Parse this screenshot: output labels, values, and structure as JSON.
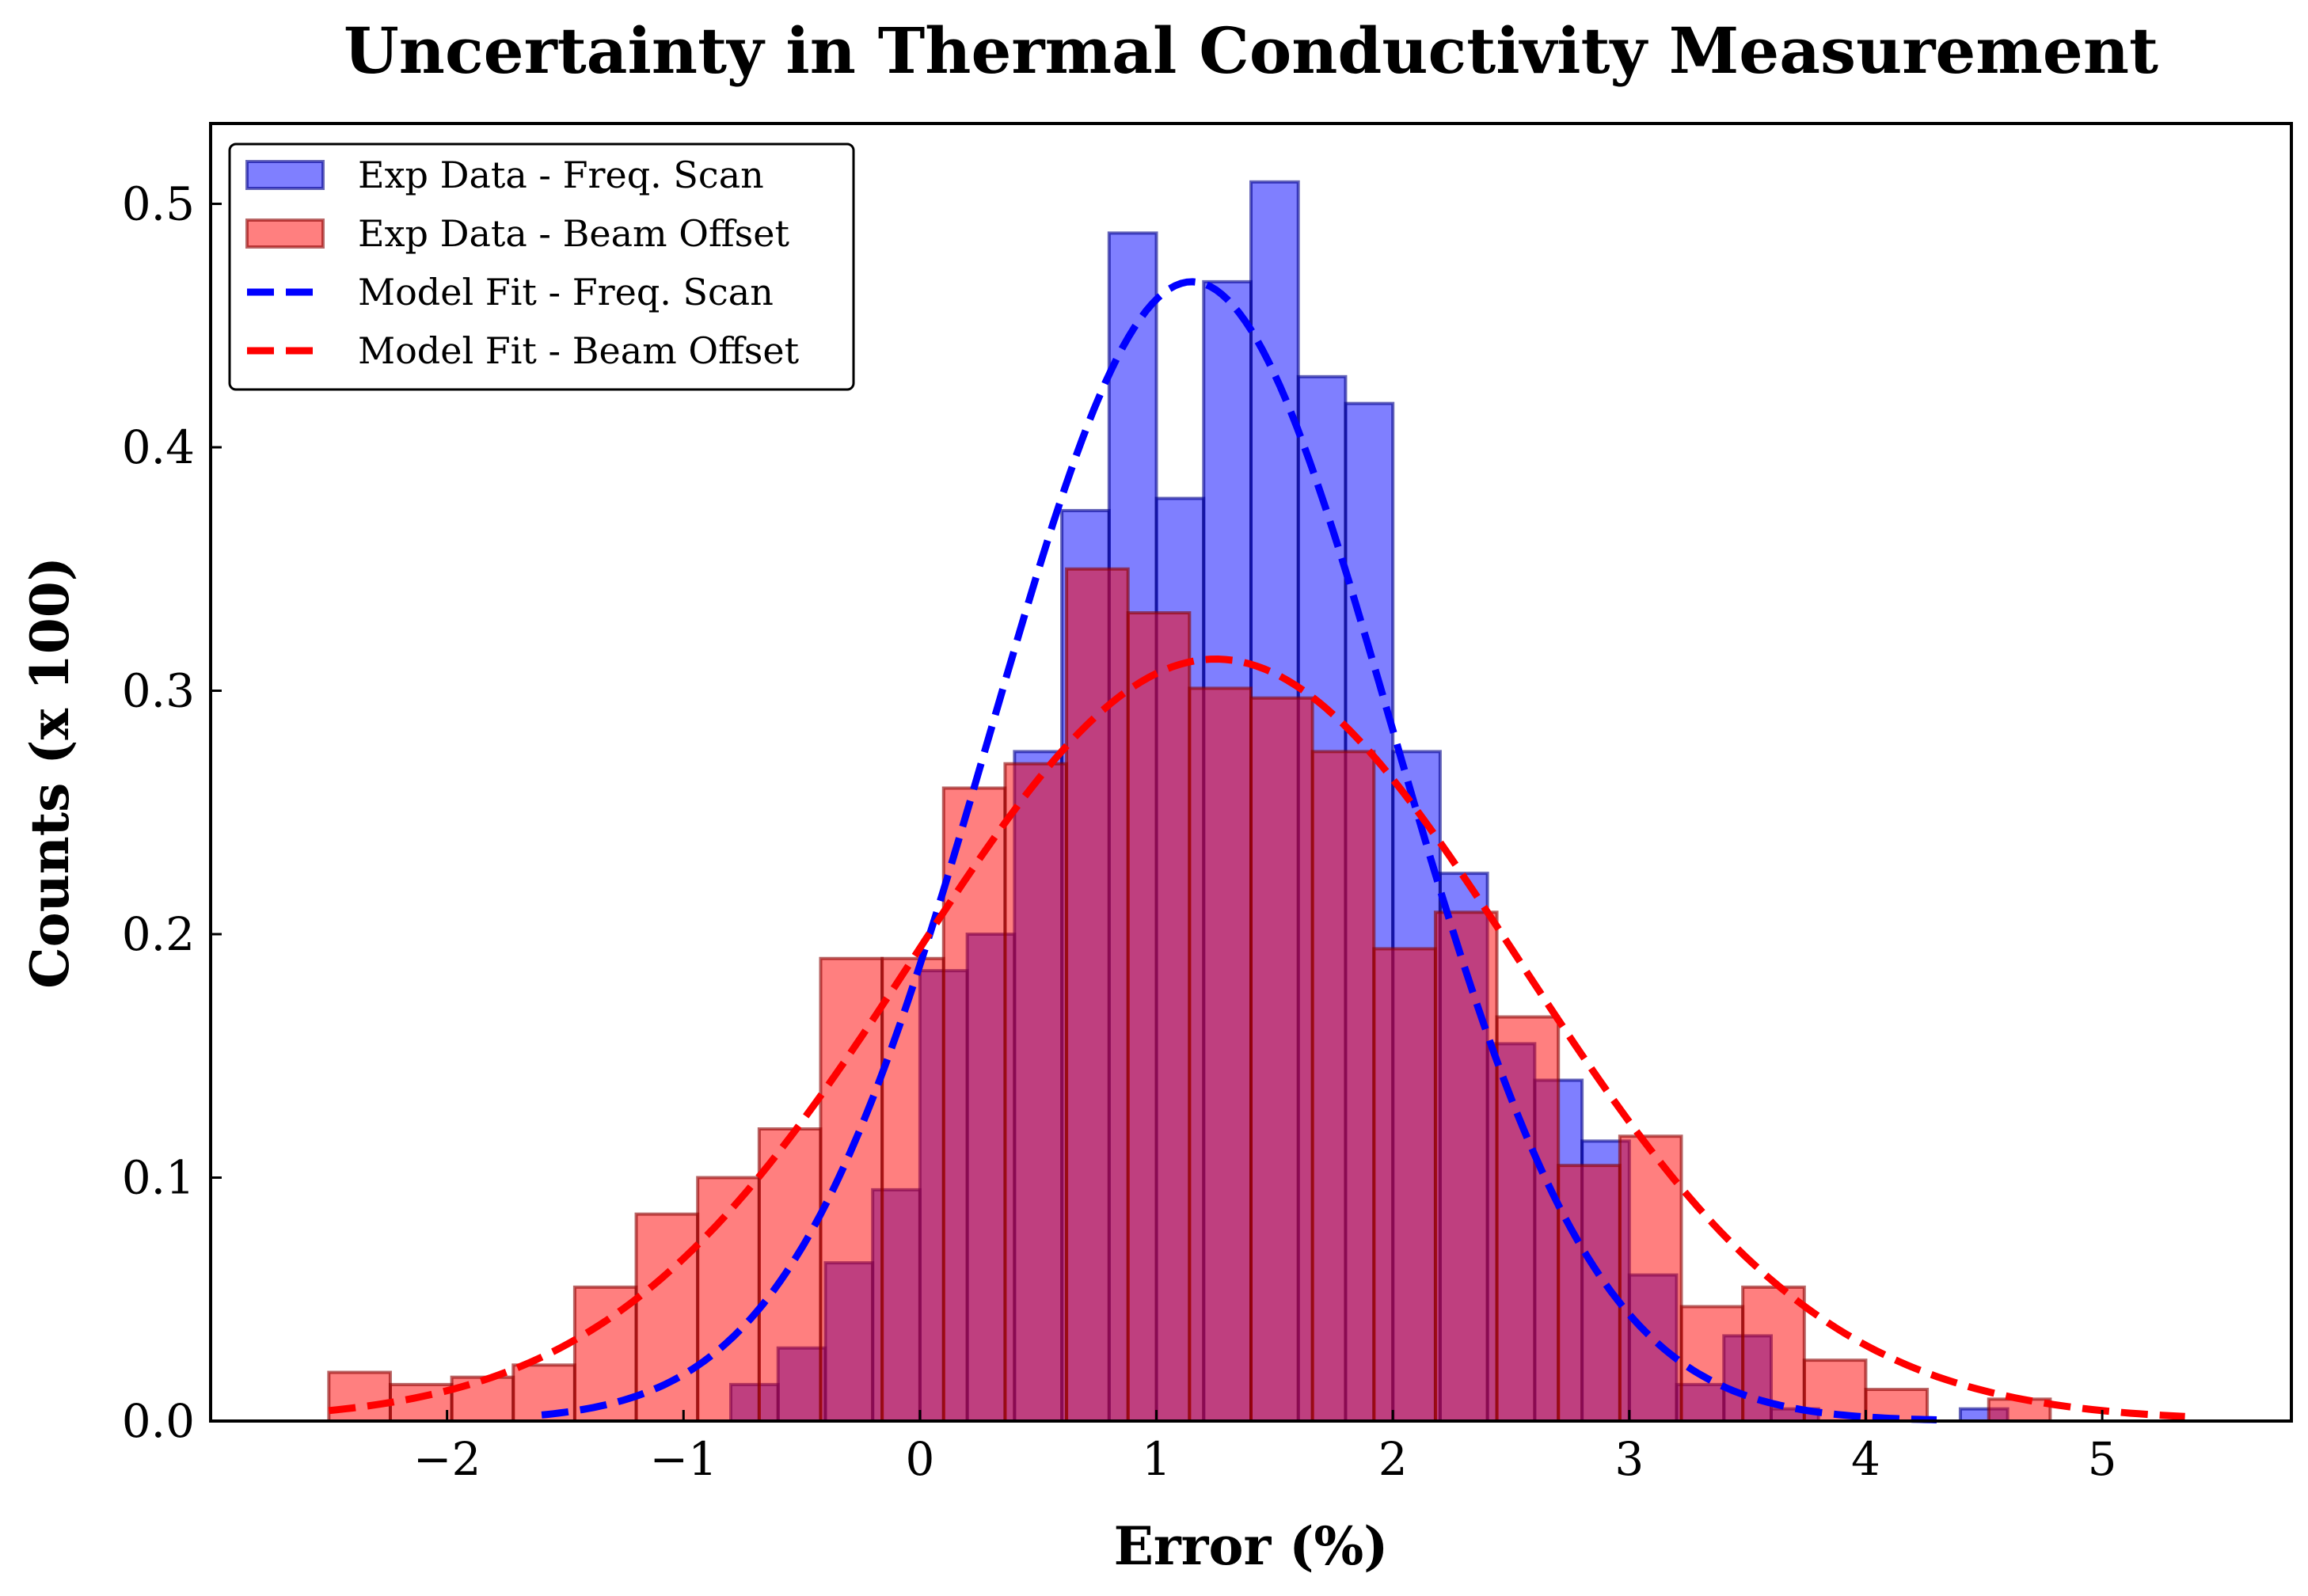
{
  "chart_data": {
    "type": "bar",
    "title": "Uncertainty in Thermal Conductivity Measurement",
    "xlabel": "Error (%)",
    "ylabel": "Counts (x 100)",
    "xlim": [
      -3.0,
      5.8
    ],
    "ylim": [
      0.0,
      0.533
    ],
    "x_ticks": [
      -2,
      -1,
      0,
      1,
      2,
      3,
      4,
      5
    ],
    "x_tick_labels": [
      "−2",
      "−1",
      "0",
      "1",
      "2",
      "3",
      "4",
      "5"
    ],
    "y_ticks": [
      0.0,
      0.1,
      0.2,
      0.3,
      0.4,
      0.5
    ],
    "y_tick_labels": [
      "0.0",
      "0.1",
      "0.2",
      "0.3",
      "0.4",
      "0.5"
    ],
    "grid": false,
    "legend_position": "top-left",
    "series": [
      {
        "name": "Exp Data - Freq. Scan",
        "kind": "histogram",
        "color": "#0000ff",
        "edge_color": "#00008b",
        "alpha": 0.5,
        "bin_start": -1.6,
        "bin_width": 0.2,
        "values": [
          0.0,
          0.0,
          0.0,
          0.0,
          0.015,
          0.03,
          0.065,
          0.095,
          0.185,
          0.2,
          0.275,
          0.374,
          0.488,
          0.379,
          0.468,
          0.509,
          0.429,
          0.418,
          0.275,
          0.225,
          0.155,
          0.14,
          0.115,
          0.06,
          0.015,
          0.035,
          0.005,
          0.0,
          0.0,
          0.0,
          0.005
        ]
      },
      {
        "name": "Exp Data - Beam Offset",
        "kind": "histogram",
        "color": "#ff0000",
        "edge_color": "#8b0000",
        "alpha": 0.5,
        "bin_start": -2.5,
        "bin_width": 0.26,
        "values": [
          0.02,
          0.015,
          0.018,
          0.023,
          0.055,
          0.085,
          0.1,
          0.12,
          0.19,
          0.19,
          0.26,
          0.27,
          0.35,
          0.332,
          0.301,
          0.297,
          0.275,
          0.194,
          0.209,
          0.166,
          0.105,
          0.117,
          0.047,
          0.055,
          0.025,
          0.013,
          0.0,
          0.009
        ]
      },
      {
        "name": "Model Fit - Freq. Scan",
        "kind": "line",
        "color": "#0000ff",
        "line_style": "dashed",
        "distribution": "normal",
        "mean": 1.15,
        "std": 0.85,
        "amplitude": 0.468,
        "x_range": [
          -1.6,
          4.3
        ]
      },
      {
        "name": "Model Fit - Beam Offset",
        "kind": "line",
        "color": "#ff0000",
        "line_style": "dashed",
        "distribution": "normal",
        "mean": 1.25,
        "std": 1.28,
        "amplitude": 0.313,
        "x_range": [
          -2.5,
          5.35
        ]
      }
    ]
  }
}
